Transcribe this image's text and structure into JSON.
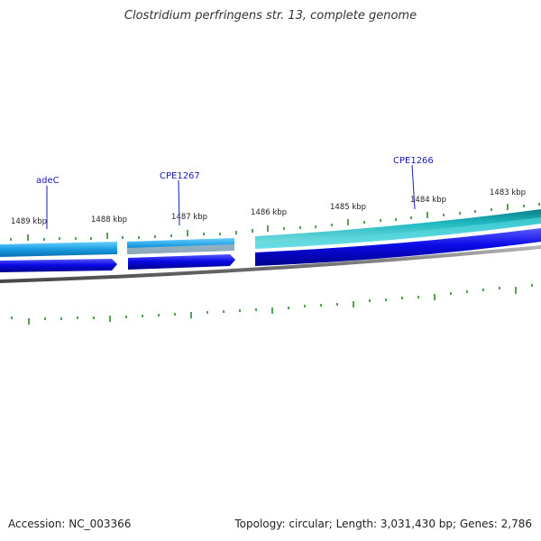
{
  "title": "Clostridium perfringens str. 13, complete genome",
  "footer": {
    "accession_text": "Accession: NC_003366",
    "summary_text": "Topology: circular; Length: 3,031,430 bp; Genes: 2,786"
  },
  "ticks": [
    {
      "label": "1489 kbp"
    },
    {
      "label": "1488 kbp"
    },
    {
      "label": "1487 kbp"
    },
    {
      "label": "1486 kbp"
    },
    {
      "label": "1485 kbp"
    },
    {
      "label": "1484 kbp"
    },
    {
      "label": "1483 kbp"
    }
  ],
  "genes": [
    {
      "name": "adeC"
    },
    {
      "name": "CPE1267"
    },
    {
      "name": "CPE1266"
    }
  ],
  "colors": {
    "cds_dark": "#0a0ae6",
    "cds_light": "#1a9be0",
    "rna_teal": "#20b8c0",
    "ruler": "#888888",
    "minor_tick": "#2a8a2a"
  }
}
